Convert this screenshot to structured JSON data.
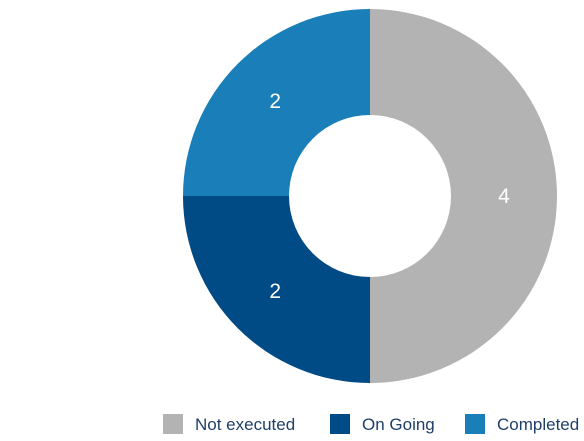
{
  "chart_data": {
    "type": "pie",
    "donut": true,
    "categories": [
      "Not executed",
      "On Going",
      "Completed"
    ],
    "values": [
      4,
      2,
      2
    ],
    "colors": [
      "#b3b3b3",
      "#004a85",
      "#1a7fb8"
    ],
    "labels": [
      "4",
      "2",
      "2"
    ],
    "legend": {
      "placement": "bottom-right",
      "items": [
        {
          "label": "Not executed",
          "color": "#b3b3b3"
        },
        {
          "label": "On Going",
          "color": "#004a85"
        },
        {
          "label": "Completed",
          "color": "#1a7fb8"
        }
      ]
    }
  }
}
